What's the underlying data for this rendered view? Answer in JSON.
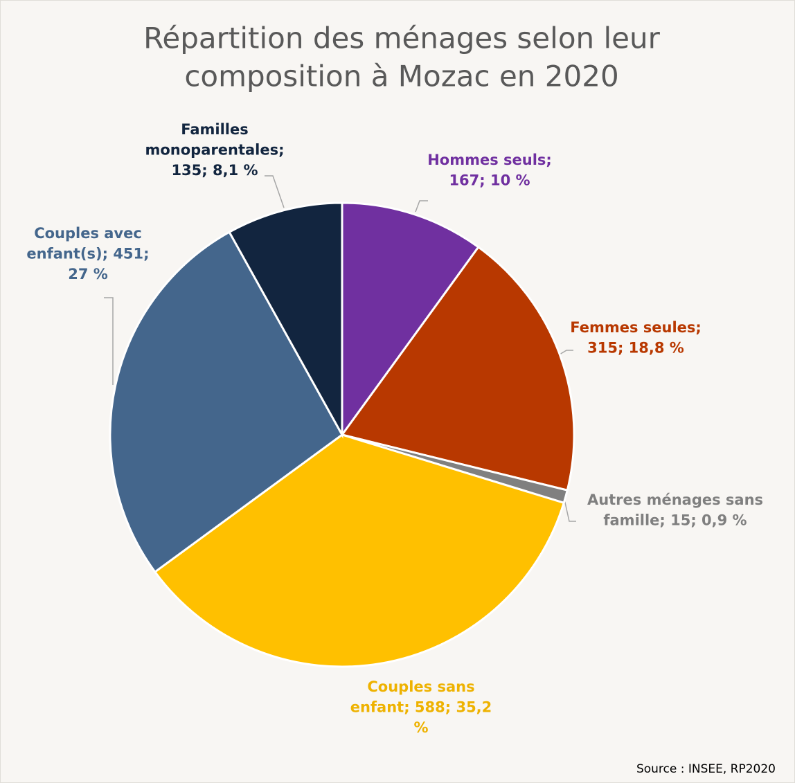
{
  "chart_data": {
    "type": "pie",
    "title": [
      "Répartition des ménages selon leur",
      "composition à Mozac en 2020"
    ],
    "values": [
      167,
      315,
      15,
      588,
      451,
      135
    ],
    "value_labels": [
      [
        "Hommes seuls;",
        "167; 10 %"
      ],
      [
        "Femmes seules;",
        "315; 18,8 %"
      ],
      [
        "Autres ménages sans",
        "famille; 15; 0,9 %"
      ],
      [
        "Couples sans",
        "enfant; 588; 35,2",
        "%"
      ],
      [
        "Couples avec",
        "enfant(s); 451;",
        "27 %"
      ],
      [
        "Familles",
        "monoparentales;",
        "135; 8,1 %"
      ]
    ],
    "colors": [
      "#7030a0",
      "#b83800",
      "#808080",
      "#ffc000",
      "#44668c",
      "#12253f"
    ],
    "label_colors": [
      "#7030a0",
      "#b83800",
      "#7f7f7f",
      "#eeb200",
      "#44668c",
      "#12253f"
    ],
    "source": "Source : INSEE, RP2020"
  }
}
